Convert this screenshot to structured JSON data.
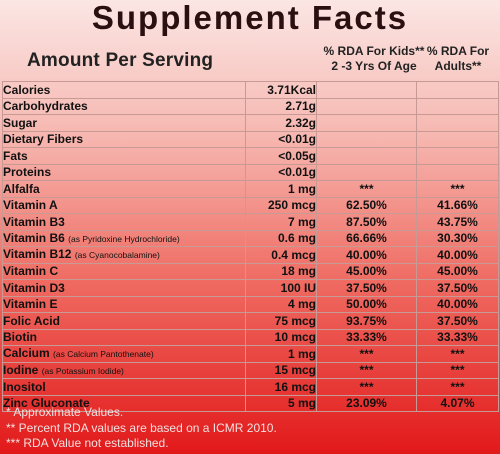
{
  "title": "Supplement Facts",
  "header": {
    "amount_per_serving": "Amount Per Serving",
    "rda_kids_line1": "% RDA For Kids**",
    "rda_kids_line2": "2 -3 Yrs Of Age",
    "rda_adults_line1": "% RDA For",
    "rda_adults_line2": "Adults**"
  },
  "rows": [
    {
      "name": "Calories",
      "note": "",
      "amount": "3.71Kcal",
      "kids": "",
      "adults": ""
    },
    {
      "name": "Carbohydrates",
      "note": "",
      "amount": "2.71g",
      "kids": "",
      "adults": ""
    },
    {
      "name": "Sugar",
      "note": "",
      "amount": "2.32g",
      "kids": "",
      "adults": ""
    },
    {
      "name": "Dietary Fibers",
      "note": "",
      "amount": "<0.01g",
      "kids": "",
      "adults": ""
    },
    {
      "name": "Fats",
      "note": "",
      "amount": "<0.05g",
      "kids": "",
      "adults": ""
    },
    {
      "name": "Proteins",
      "note": "",
      "amount": "<0.01g",
      "kids": "",
      "adults": ""
    },
    {
      "name": "Alfalfa",
      "note": "",
      "amount": "1 mg",
      "kids": "***",
      "adults": "***"
    },
    {
      "name": "Vitamin A",
      "note": "",
      "amount": "250 mcg",
      "kids": "62.50%",
      "adults": "41.66%"
    },
    {
      "name": "Vitamin B3",
      "note": "",
      "amount": "7 mg",
      "kids": "87.50%",
      "adults": "43.75%"
    },
    {
      "name": "Vitamin B6",
      "note": "(as Pyridoxine Hydrochloride)",
      "amount": "0.6 mg",
      "kids": "66.66%",
      "adults": "30.30%"
    },
    {
      "name": "Vitamin B12",
      "note": "(as Cyanocobalamine)",
      "amount": "0.4 mcg",
      "kids": "40.00%",
      "adults": "40.00%"
    },
    {
      "name": "Vitamin C",
      "note": "",
      "amount": "18 mg",
      "kids": "45.00%",
      "adults": "45.00%"
    },
    {
      "name": "Vitamin D3",
      "note": "",
      "amount": "100 IU",
      "kids": "37.50%",
      "adults": "37.50%"
    },
    {
      "name": "Vitamin E",
      "note": "",
      "amount": "4 mg",
      "kids": "50.00%",
      "adults": "40.00%"
    },
    {
      "name": "Folic Acid",
      "note": "",
      "amount": "75 mcg",
      "kids": "93.75%",
      "adults": "37.50%"
    },
    {
      "name": "Biotin",
      "note": "",
      "amount": "10 mcg",
      "kids": "33.33%",
      "adults": "33.33%"
    },
    {
      "name": "Calcium",
      "note": "(as Calcium Pantothenate)",
      "amount": "1 mg",
      "kids": "***",
      "adults": "***"
    },
    {
      "name": "Iodine",
      "note": "(as Potassium Iodide)",
      "amount": "15 mcg",
      "kids": "***",
      "adults": "***"
    },
    {
      "name": "Inositol",
      "note": "",
      "amount": "16 mcg",
      "kids": "***",
      "adults": "***"
    },
    {
      "name": "Zinc Gluconate",
      "note": "",
      "amount": "5 mg",
      "kids": "23.09%",
      "adults": "4.07%"
    }
  ],
  "notes": [
    "* Approximate Values.",
    "** Percent RDA values are based on a ICMR 2010.",
    "*** RDA Value not established."
  ]
}
